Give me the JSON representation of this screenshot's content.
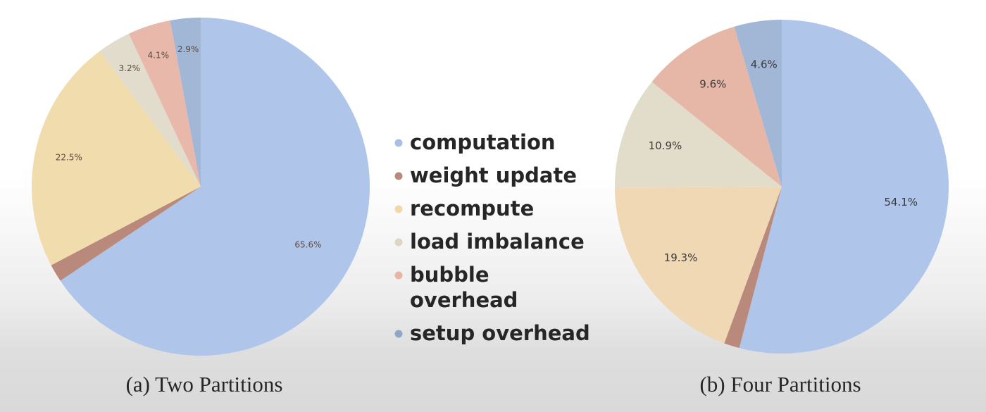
{
  "legend": {
    "items": [
      {
        "lines": [
          "computation"
        ],
        "color": "#a9c0e6"
      },
      {
        "lines": [
          "weight update"
        ],
        "color": "#b98a7c"
      },
      {
        "lines": [
          "recompute"
        ],
        "color": "#f0d9a8"
      },
      {
        "lines": [
          "load imbalance"
        ],
        "color": "#dcd6c4"
      },
      {
        "lines": [
          "bubble",
          "overhead"
        ],
        "color": "#e6b5a6"
      },
      {
        "lines": [
          "setup overhead"
        ],
        "color": "#8fa8c8"
      }
    ]
  },
  "chart_data": [
    {
      "type": "pie",
      "caption": "(a) Two Partitions",
      "slices": [
        {
          "category": "computation",
          "value": 65.6,
          "label": "65.6%",
          "color": "#afc5ea"
        },
        {
          "category": "weight update",
          "value": 1.7,
          "label": "",
          "color": "#b98a7c"
        },
        {
          "category": "recompute",
          "value": 22.5,
          "label": "22.5%",
          "color": "#f1dcae"
        },
        {
          "category": "load imbalance",
          "value": 3.2,
          "label": "3.2%",
          "color": "#e1dccb"
        },
        {
          "category": "bubble overhead",
          "value": 4.1,
          "label": "4.1%",
          "color": "#e8b8aa"
        },
        {
          "category": "setup overhead",
          "value": 2.9,
          "label": "2.9%",
          "color": "#a2b6d6"
        }
      ]
    },
    {
      "type": "pie",
      "caption": "(b) Four Partitions",
      "slices": [
        {
          "category": "computation",
          "value": 54.1,
          "label": "54.1%",
          "color": "#afc5ea"
        },
        {
          "category": "weight update",
          "value": 1.5,
          "label": "",
          "color": "#b98a7c"
        },
        {
          "category": "recompute",
          "value": 19.3,
          "label": "19.3%",
          "color": "#f1d8b4"
        },
        {
          "category": "load imbalance",
          "value": 10.9,
          "label": "10.9%",
          "color": "#e2ddcb"
        },
        {
          "category": "bubble overhead",
          "value": 9.6,
          "label": "9.6%",
          "color": "#e6b6a6"
        },
        {
          "category": "setup overhead",
          "value": 4.6,
          "label": "4.6%",
          "color": "#a2b6d6"
        }
      ]
    }
  ]
}
